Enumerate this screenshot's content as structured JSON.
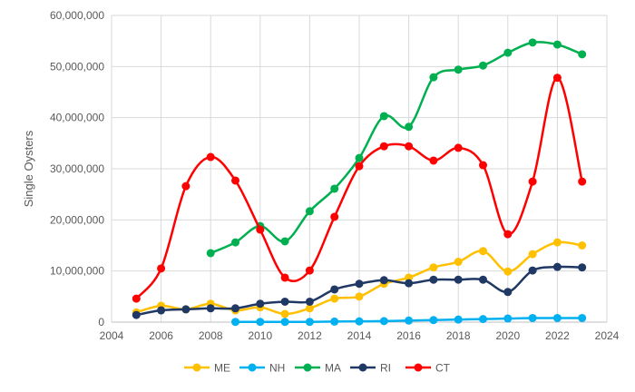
{
  "chart_data": {
    "type": "line",
    "title": "",
    "xlabel": "",
    "ylabel": "Single Oysters",
    "xlim": [
      2004,
      2024
    ],
    "ylim": [
      0,
      60000000
    ],
    "xticks": [
      2004,
      2006,
      2008,
      2010,
      2012,
      2014,
      2016,
      2018,
      2020,
      2022,
      2024
    ],
    "yticks": [
      "0",
      "10,000,000",
      "20,000,000",
      "30,000,000",
      "40,000,000",
      "50,000,000",
      "60,000,000"
    ],
    "ytick_values": [
      0,
      10000000,
      20000000,
      30000000,
      40000000,
      50000000,
      60000000
    ],
    "grid": true,
    "smoothed": true,
    "legend_position": "bottom",
    "series": [
      {
        "name": "ME",
        "color": "#FFC000",
        "x": [
          2005,
          2006,
          2007,
          2008,
          2009,
          2010,
          2011,
          2012,
          2013,
          2014,
          2015,
          2016,
          2017,
          2018,
          2019,
          2020,
          2021,
          2022,
          2023
        ],
        "values": [
          1900000,
          3200000,
          2500000,
          3600000,
          2300000,
          2900000,
          1600000,
          2700000,
          4600000,
          5000000,
          7500000,
          8700000,
          10700000,
          11800000,
          13900000,
          9900000,
          13300000,
          15600000,
          15000000
        ]
      },
      {
        "name": "NH",
        "color": "#00B0F0",
        "x": [
          2009,
          2010,
          2011,
          2012,
          2013,
          2014,
          2015,
          2016,
          2017,
          2018,
          2019,
          2020,
          2021,
          2022,
          2023
        ],
        "values": [
          50000,
          50000,
          50000,
          50000,
          100000,
          150000,
          200000,
          300000,
          400000,
          500000,
          600000,
          700000,
          800000,
          800000,
          800000
        ]
      },
      {
        "name": "MA",
        "color": "#00B050",
        "x": [
          2008,
          2009,
          2010,
          2011,
          2012,
          2013,
          2014,
          2015,
          2016,
          2017,
          2018,
          2019,
          2020,
          2021,
          2022,
          2023
        ],
        "values": [
          13500000,
          15600000,
          18800000,
          15800000,
          21700000,
          26100000,
          32100000,
          40300000,
          38200000,
          47900000,
          49400000,
          50200000,
          52700000,
          54700000,
          54300000,
          52400000
        ]
      },
      {
        "name": "RI",
        "color": "#203864",
        "x": [
          2005,
          2006,
          2007,
          2008,
          2009,
          2010,
          2011,
          2012,
          2013,
          2014,
          2015,
          2016,
          2017,
          2018,
          2019,
          2020,
          2021,
          2022,
          2023
        ],
        "values": [
          1400000,
          2300000,
          2500000,
          2700000,
          2700000,
          3600000,
          4000000,
          4000000,
          6400000,
          7500000,
          8200000,
          7600000,
          8300000,
          8300000,
          8300000,
          5900000,
          10100000,
          10800000,
          10700000
        ]
      },
      {
        "name": "CT",
        "color": "#FF0000",
        "x": [
          2005,
          2006,
          2007,
          2008,
          2009,
          2010,
          2011,
          2012,
          2013,
          2014,
          2015,
          2016,
          2017,
          2018,
          2019,
          2020,
          2021,
          2022,
          2023
        ],
        "values": [
          4600000,
          10500000,
          26600000,
          32300000,
          27700000,
          18100000,
          8700000,
          10100000,
          20600000,
          30500000,
          34400000,
          34400000,
          31600000,
          34100000,
          30700000,
          17200000,
          27500000,
          47800000,
          27500000
        ]
      }
    ]
  }
}
